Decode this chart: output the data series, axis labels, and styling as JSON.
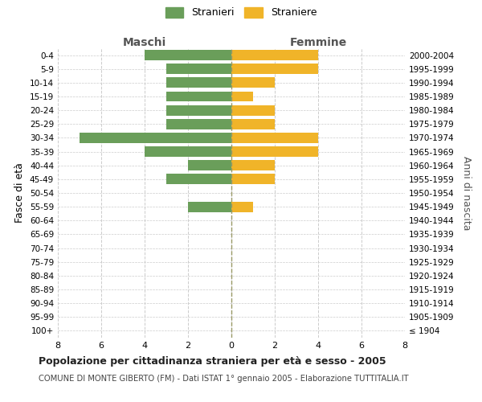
{
  "age_groups": [
    "100+",
    "95-99",
    "90-94",
    "85-89",
    "80-84",
    "75-79",
    "70-74",
    "65-69",
    "60-64",
    "55-59",
    "50-54",
    "45-49",
    "40-44",
    "35-39",
    "30-34",
    "25-29",
    "20-24",
    "15-19",
    "10-14",
    "5-9",
    "0-4"
  ],
  "birth_years": [
    "≤ 1904",
    "1905-1909",
    "1910-1914",
    "1915-1919",
    "1920-1924",
    "1925-1929",
    "1930-1934",
    "1935-1939",
    "1940-1944",
    "1945-1949",
    "1950-1954",
    "1955-1959",
    "1960-1964",
    "1965-1969",
    "1970-1974",
    "1975-1979",
    "1980-1984",
    "1985-1989",
    "1990-1994",
    "1995-1999",
    "2000-2004"
  ],
  "maschi": [
    0,
    0,
    0,
    0,
    0,
    0,
    0,
    0,
    0,
    2,
    0,
    3,
    2,
    4,
    7,
    3,
    3,
    3,
    3,
    3,
    4
  ],
  "femmine": [
    0,
    0,
    0,
    0,
    0,
    0,
    0,
    0,
    0,
    1,
    0,
    2,
    2,
    4,
    4,
    2,
    2,
    1,
    2,
    4,
    4
  ],
  "color_maschi": "#6a9e5a",
  "color_femmine": "#f0b429",
  "title": "Popolazione per cittadinanza straniera per età e sesso - 2005",
  "subtitle": "COMUNE DI MONTE GIBERTO (FM) - Dati ISTAT 1° gennaio 2005 - Elaborazione TUTTITALIA.IT",
  "ylabel_left": "Fasce di età",
  "ylabel_right": "Anni di nascita",
  "xlabel_maschi": "Maschi",
  "xlabel_femmine": "Femmine",
  "legend_maschi": "Stranieri",
  "legend_femmine": "Straniere",
  "xlim": 8,
  "background_color": "#ffffff",
  "grid_color": "#cccccc"
}
